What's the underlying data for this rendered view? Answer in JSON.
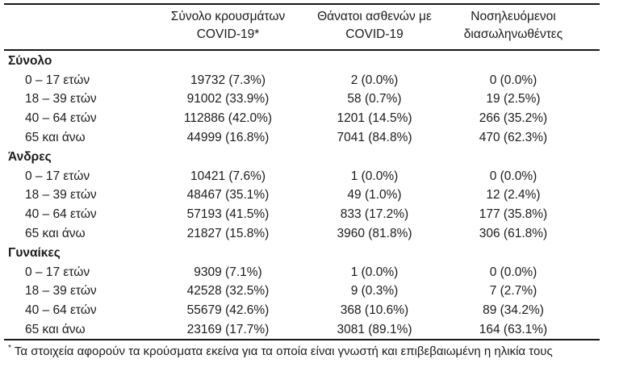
{
  "page": {
    "background": "#ffffff",
    "text_color": "#1b1b1b",
    "rule_color": "#161616"
  },
  "table": {
    "header": {
      "col_cases": {
        "line1": "Σύνολο κρουσμάτων",
        "line2": "COVID-19*"
      },
      "col_deaths": {
        "line1": "Θάνατοι ασθενών με",
        "line2": "COVID-19"
      },
      "col_intubated": {
        "line1": "Νοσηλευόμενοι",
        "line2": "διασωληνωθέντες"
      }
    },
    "sections": [
      {
        "label": "Σύνολο",
        "rows": [
          {
            "label": "0 – 17 ετών",
            "cases": "19732 (7.3%)",
            "deaths": "2 (0.0%)",
            "intubated": "0 (0.0%)"
          },
          {
            "label": "18 – 39 ετών",
            "cases": "91002 (33.9%)",
            "deaths": "58 (0.7%)",
            "intubated": "19 (2.5%)"
          },
          {
            "label": "40 – 64 ετών",
            "cases": "112886 (42.0%)",
            "deaths": "1201 (14.5%)",
            "intubated": "266 (35.2%)"
          },
          {
            "label": "65 και άνω",
            "cases": "44999 (16.8%)",
            "deaths": "7041 (84.8%)",
            "intubated": "470 (62.3%)"
          }
        ]
      },
      {
        "label": "Άνδρες",
        "rows": [
          {
            "label": "0 – 17 ετών",
            "cases": "10421 (7.6%)",
            "deaths": "1 (0.0%)",
            "intubated": "0 (0.0%)"
          },
          {
            "label": "18 – 39 ετών",
            "cases": "48467 (35.1%)",
            "deaths": "49 (1.0%)",
            "intubated": "12 (2.4%)"
          },
          {
            "label": "40 – 64 ετών",
            "cases": "57193 (41.5%)",
            "deaths": "833 (17.2%)",
            "intubated": "177 (35.8%)"
          },
          {
            "label": "65 και άνω",
            "cases": "21827 (15.8%)",
            "deaths": "3960 (81.8%)",
            "intubated": "306 (61.8%)"
          }
        ]
      },
      {
        "label": "Γυναίκες",
        "rows": [
          {
            "label": "0 – 17 ετών",
            "cases": "9309 (7.1%)",
            "deaths": "1 (0.0%)",
            "intubated": "0 (0.0%)"
          },
          {
            "label": "18 – 39 ετών",
            "cases": "42528 (32.5%)",
            "deaths": "9 (0.3%)",
            "intubated": "7 (2.7%)"
          },
          {
            "label": "40 – 64 ετών",
            "cases": "55679 (42.6%)",
            "deaths": "368 (10.6%)",
            "intubated": "89 (34.2%)"
          },
          {
            "label": "65 και άνω",
            "cases": "23169 (17.7%)",
            "deaths": "3081 (89.1%)",
            "intubated": "164 (63.1%)"
          }
        ]
      }
    ]
  },
  "footnote": {
    "marker": "*",
    "text": "Τα στοιχεία αφορούν τα κρούσματα εκείνα για τα οποία είναι γνωστή και επιβεβαιωμένη η ηλικία τους"
  }
}
